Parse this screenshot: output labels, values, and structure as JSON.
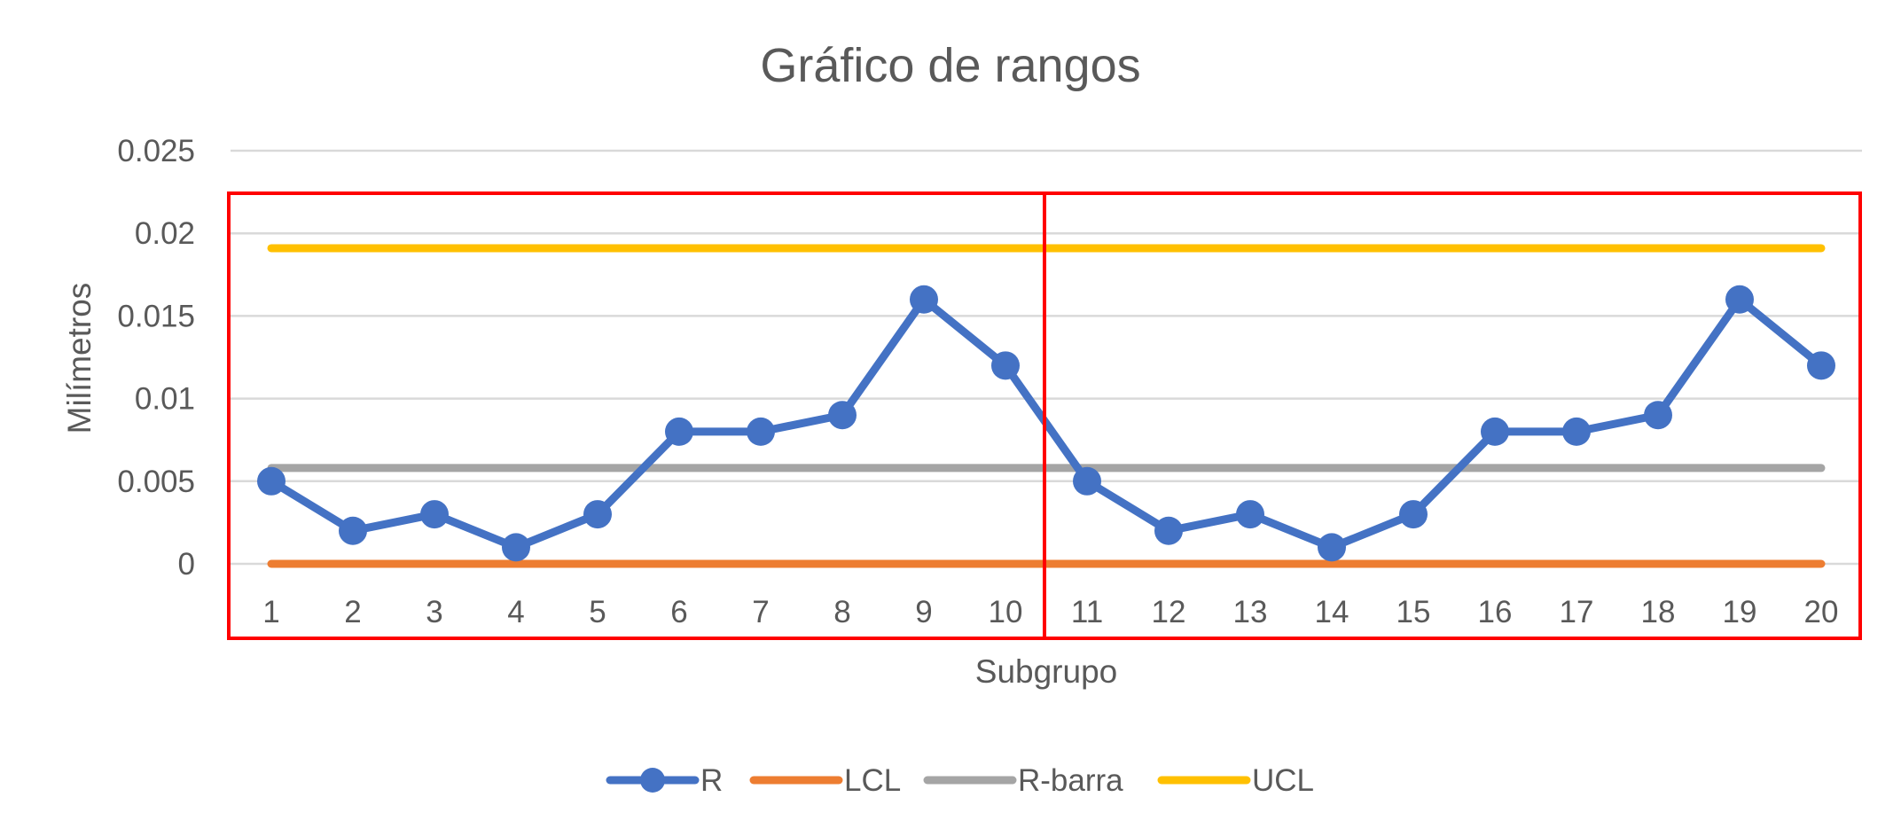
{
  "chart_data": {
    "type": "line",
    "title": "Gráfico de rangos",
    "xlabel": "Subgrupo",
    "ylabel": "Milímetros",
    "categories": [
      "1",
      "2",
      "3",
      "4",
      "5",
      "6",
      "7",
      "8",
      "9",
      "10",
      "11",
      "12",
      "13",
      "14",
      "15",
      "16",
      "17",
      "18",
      "19",
      "20"
    ],
    "y_ticks": [
      "0",
      "0.005",
      "0.01",
      "0.015",
      "0.02",
      "0.025"
    ],
    "ylim": [
      0,
      0.025
    ],
    "grid": "horizontal",
    "legend_position": "bottom",
    "series": [
      {
        "name": "R",
        "color": "#4472C4",
        "marker": "circle",
        "values": [
          0.005,
          0.002,
          0.003,
          0.001,
          0.003,
          0.008,
          0.008,
          0.009,
          0.016,
          0.012,
          0.005,
          0.002,
          0.003,
          0.001,
          0.003,
          0.008,
          0.008,
          0.009,
          0.016,
          0.012
        ]
      },
      {
        "name": "LCL",
        "color": "#ED7D31",
        "marker": "none",
        "values": [
          0,
          0,
          0,
          0,
          0,
          0,
          0,
          0,
          0,
          0,
          0,
          0,
          0,
          0,
          0,
          0,
          0,
          0,
          0,
          0
        ]
      },
      {
        "name": "R-barra",
        "color": "#A5A5A5",
        "marker": "none",
        "values": [
          0.0058,
          0.0058,
          0.0058,
          0.0058,
          0.0058,
          0.0058,
          0.0058,
          0.0058,
          0.0058,
          0.0058,
          0.0058,
          0.0058,
          0.0058,
          0.0058,
          0.0058,
          0.0058,
          0.0058,
          0.0058,
          0.0058,
          0.0058
        ]
      },
      {
        "name": "UCL",
        "color": "#FFC000",
        "marker": "none",
        "values": [
          0.0191,
          0.0191,
          0.0191,
          0.0191,
          0.0191,
          0.0191,
          0.0191,
          0.0191,
          0.0191,
          0.0191,
          0.0191,
          0.0191,
          0.0191,
          0.0191,
          0.0191,
          0.0191,
          0.0191,
          0.0191,
          0.0191,
          0.0191
        ]
      }
    ],
    "annotations": [
      {
        "type": "highlight-box",
        "color": "#FF0000",
        "from_category": "1",
        "to_category": "10"
      },
      {
        "type": "highlight-box",
        "color": "#FF0000",
        "from_category": "11",
        "to_category": "20"
      }
    ]
  }
}
